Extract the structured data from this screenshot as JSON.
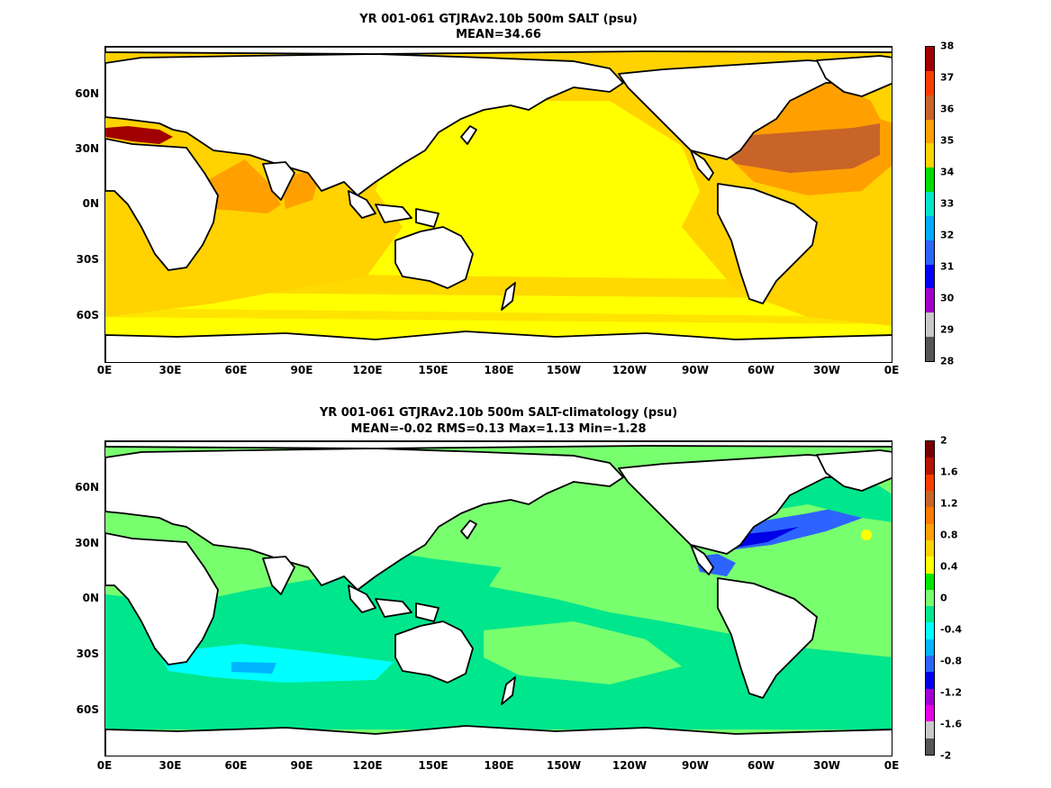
{
  "colors": {
    "salt": [
      "#555555",
      "#c8c8c8",
      "#a000c8",
      "#0000ff",
      "#2d64ff",
      "#00aaff",
      "#00e6c8",
      "#00dc00",
      "#ffd200",
      "#ffa000",
      "#c86428",
      "#ff3c00",
      "#a00000"
    ],
    "diff": [
      "#555555",
      "#c8c8c8",
      "#e600e6",
      "#a000d2",
      "#0000e6",
      "#2d64ff",
      "#00b4ff",
      "#00ffff",
      "#00e68c",
      "#78ff6e",
      "#00e600",
      "#ffff00",
      "#ffd200",
      "#ffa000",
      "#ff7800",
      "#c86428",
      "#ff3c00",
      "#b41400",
      "#780000"
    ],
    "land": "#ffffff",
    "coast": "#000000"
  },
  "panel1": {
    "title_line1": "YR 001-061 GTJRAv2.10b 500m SALT (psu)",
    "title_line2": "MEAN=34.66",
    "colorbar_labels": [
      "38",
      "37",
      "36",
      "35",
      "34",
      "33",
      "32",
      "31",
      "30",
      "29",
      "28"
    ]
  },
  "panel2": {
    "title_line1": "YR 001-061 GTJRAv2.10b 500m SALT-climatology (psu)",
    "title_line2": "MEAN=-0.02   RMS=0.13   Max=1.13   Min=-1.28",
    "colorbar_labels": [
      "2",
      "1.6",
      "1.2",
      "0.8",
      "0.4",
      "0",
      "-0.4",
      "-0.8",
      "-1.2",
      "-1.6",
      "-2"
    ]
  },
  "axes": {
    "x_ticks": [
      "0E",
      "30E",
      "60E",
      "90E",
      "120E",
      "150E",
      "180E",
      "150W",
      "120W",
      "90W",
      "60W",
      "30W",
      "0E"
    ],
    "y_ticks": [
      "60N",
      "30N",
      "0N",
      "30S",
      "60S"
    ]
  }
}
